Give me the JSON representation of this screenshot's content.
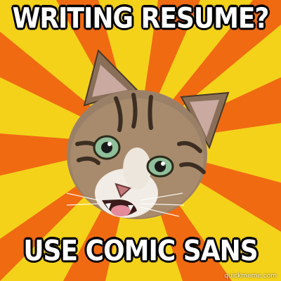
{
  "meme": {
    "top_text": "WRITING RESUME?",
    "bottom_text": "USE COMIC SANS",
    "watermark": "quickmeme.com"
  },
  "background": {
    "ray_color_a": "#f4d21a",
    "ray_color_b": "#f06a12"
  }
}
